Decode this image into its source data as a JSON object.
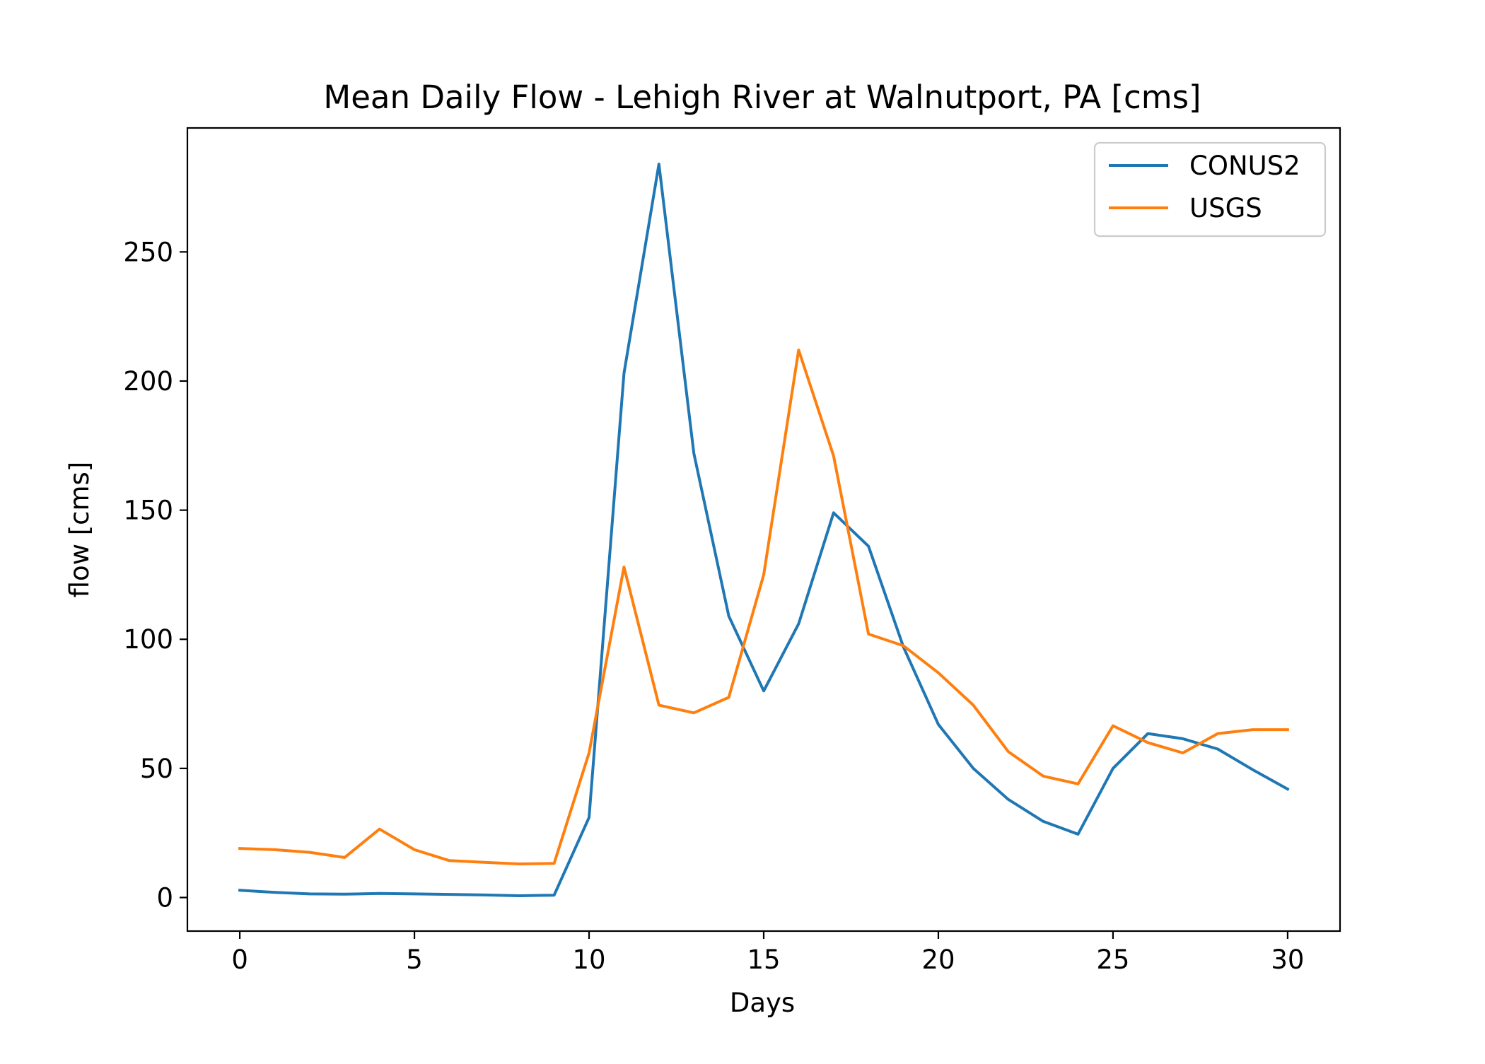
{
  "chart_data": {
    "type": "line",
    "title": "Mean Daily Flow - Lehigh River at Walnutport, PA [cms]",
    "xlabel": "Days",
    "ylabel": "flow [cms]",
    "xlim": [
      -1.5,
      31.5
    ],
    "ylim": [
      -13,
      298
    ],
    "xticks": [
      0,
      5,
      10,
      15,
      20,
      25,
      30
    ],
    "yticks": [
      0,
      50,
      100,
      150,
      200,
      250
    ],
    "grid": false,
    "legend_position": "top-right",
    "x": [
      0,
      1,
      2,
      3,
      4,
      5,
      6,
      7,
      8,
      9,
      10,
      11,
      12,
      13,
      14,
      15,
      16,
      17,
      18,
      19,
      20,
      21,
      22,
      23,
      24,
      25,
      26,
      27,
      28,
      29,
      30
    ],
    "series": [
      {
        "name": "CONUS2",
        "color": "#1f77b4",
        "values": [
          2.8,
          2.0,
          1.4,
          1.3,
          1.6,
          1.4,
          1.2,
          1.0,
          0.7,
          0.9,
          31,
          203,
          284,
          172,
          109,
          80,
          106,
          149,
          136,
          97,
          67,
          50,
          38,
          29.5,
          24.5,
          50,
          63.5,
          61.5,
          57.5,
          49.5,
          42
        ]
      },
      {
        "name": "USGS",
        "color": "#ff7f0e",
        "values": [
          19,
          18.5,
          17.5,
          15.5,
          26.5,
          18.5,
          14.3,
          13.6,
          13,
          13.2,
          56,
          128,
          74.5,
          71.5,
          77.5,
          125,
          212,
          171,
          102,
          97.5,
          87,
          74.5,
          56.5,
          47,
          44,
          66.5,
          60,
          56,
          63.5,
          65,
          65
        ]
      }
    ]
  }
}
